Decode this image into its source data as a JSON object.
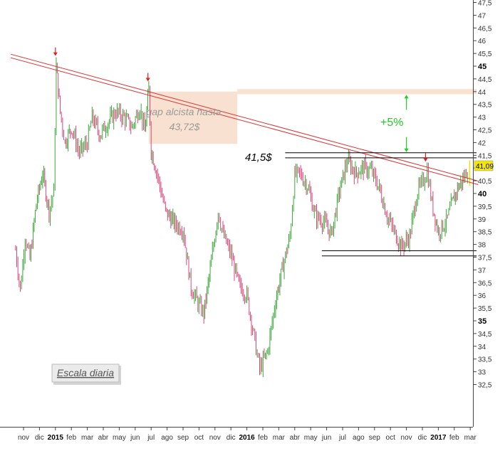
{
  "chart_data": {
    "type": "ohlc",
    "colors": {
      "up": "#3aa83a",
      "down": "#d9467a",
      "trendline": "#e03030",
      "support": "#000000",
      "gap_zone": "#f7dcc8",
      "arrow": "#e02020",
      "percent": "#22cc22",
      "last_price": "#f0e000"
    },
    "x_ticks": [
      {
        "label": "nov",
        "t": 0
      },
      {
        "label": "dic",
        "t": 1
      },
      {
        "label": "2015",
        "t": 2,
        "bold": true
      },
      {
        "label": "feb",
        "t": 3
      },
      {
        "label": "mar",
        "t": 4
      },
      {
        "label": "abr",
        "t": 5
      },
      {
        "label": "may",
        "t": 6
      },
      {
        "label": "jun",
        "t": 7
      },
      {
        "label": "jul",
        "t": 8
      },
      {
        "label": "ago",
        "t": 9
      },
      {
        "label": "sep",
        "t": 10
      },
      {
        "label": "oct",
        "t": 11
      },
      {
        "label": "nov",
        "t": 12
      },
      {
        "label": "dic",
        "t": 13
      },
      {
        "label": "2016",
        "t": 14,
        "bold": true
      },
      {
        "label": "feb",
        "t": 15
      },
      {
        "label": "mar",
        "t": 16
      },
      {
        "label": "abr",
        "t": 17
      },
      {
        "label": "may",
        "t": 18
      },
      {
        "label": "jun",
        "t": 19
      },
      {
        "label": "jul",
        "t": 20
      },
      {
        "label": "ago",
        "t": 21
      },
      {
        "label": "sep",
        "t": 22
      },
      {
        "label": "oct",
        "t": 23
      },
      {
        "label": "nov",
        "t": 24
      },
      {
        "label": "dic",
        "t": 25
      },
      {
        "label": "2017",
        "t": 26,
        "bold": true
      },
      {
        "label": "feb",
        "t": 27
      },
      {
        "label": "mar",
        "t": 28
      }
    ],
    "y_ticks": [
      {
        "label": "47,5",
        "v": 47.5
      },
      {
        "label": "47",
        "v": 47
      },
      {
        "label": "46,5",
        "v": 46.5
      },
      {
        "label": "46",
        "v": 46
      },
      {
        "label": "45,5",
        "v": 45.5
      },
      {
        "label": "45",
        "v": 45,
        "bold": true
      },
      {
        "label": "44,5",
        "v": 44.5
      },
      {
        "label": "44",
        "v": 44
      },
      {
        "label": "43,5",
        "v": 43.5
      },
      {
        "label": "43",
        "v": 43
      },
      {
        "label": "42,5",
        "v": 42.5
      },
      {
        "label": "42",
        "v": 42
      },
      {
        "label": "41,5",
        "v": 41.5
      },
      {
        "label": "41",
        "v": 41
      },
      {
        "label": "40,5",
        "v": 40.5
      },
      {
        "label": "40",
        "v": 40,
        "bold": true
      },
      {
        "label": "39,5",
        "v": 39.5
      },
      {
        "label": "39",
        "v": 39
      },
      {
        "label": "38,5",
        "v": 38.5
      },
      {
        "label": "38",
        "v": 38
      },
      {
        "label": "37,5",
        "v": 37.5
      },
      {
        "label": "37",
        "v": 37
      },
      {
        "label": "36,5",
        "v": 36.5
      },
      {
        "label": "36",
        "v": 36
      },
      {
        "label": "35,5",
        "v": 35.5
      },
      {
        "label": "35",
        "v": 35,
        "bold": true
      },
      {
        "label": "34,5",
        "v": 34.5
      },
      {
        "label": "34",
        "v": 34
      },
      {
        "label": "33,5",
        "v": 33.5
      },
      {
        "label": "33",
        "v": 33
      },
      {
        "label": "32,5",
        "v": 32.5
      }
    ],
    "price_path": [
      [
        -0.5,
        37.8
      ],
      [
        -0.2,
        36.2
      ],
      [
        0.1,
        38.3
      ],
      [
        0.4,
        37.4
      ],
      [
        0.8,
        39.6
      ],
      [
        1.2,
        40.8
      ],
      [
        1.6,
        39.3
      ],
      [
        1.9,
        40.1
      ],
      [
        2.05,
        45.0
      ],
      [
        2.3,
        43.2
      ],
      [
        2.6,
        42.0
      ],
      [
        3.0,
        42.6
      ],
      [
        3.5,
        41.6
      ],
      [
        4.0,
        42.0
      ],
      [
        4.3,
        43.0
      ],
      [
        4.8,
        42.3
      ],
      [
        5.3,
        42.8
      ],
      [
        5.8,
        43.2
      ],
      [
        6.3,
        43.0
      ],
      [
        6.8,
        42.6
      ],
      [
        7.3,
        43.4
      ],
      [
        7.6,
        42.4
      ],
      [
        7.85,
        44.1
      ],
      [
        8.0,
        41.7
      ],
      [
        8.4,
        40.7
      ],
      [
        8.9,
        39.3
      ],
      [
        9.5,
        38.8
      ],
      [
        10.0,
        38.6
      ],
      [
        10.5,
        36.3
      ],
      [
        11.0,
        35.6
      ],
      [
        11.3,
        35.3
      ],
      [
        11.7,
        37.0
      ],
      [
        12.2,
        39.3
      ],
      [
        12.5,
        38.4
      ],
      [
        13.0,
        37.6
      ],
      [
        13.5,
        36.4
      ],
      [
        14.0,
        36.0
      ],
      [
        14.5,
        34.2
      ],
      [
        14.8,
        33.1
      ],
      [
        15.3,
        33.8
      ],
      [
        15.8,
        35.8
      ],
      [
        16.2,
        37.0
      ],
      [
        16.7,
        38.3
      ],
      [
        17.0,
        40.7
      ],
      [
        17.3,
        40.8
      ],
      [
        17.8,
        40.3
      ],
      [
        18.3,
        39.1
      ],
      [
        18.8,
        38.9
      ],
      [
        19.3,
        38.4
      ],
      [
        19.8,
        40.1
      ],
      [
        20.3,
        41.3
      ],
      [
        20.8,
        40.8
      ],
      [
        21.3,
        41.0
      ],
      [
        21.8,
        40.9
      ],
      [
        22.3,
        40.2
      ],
      [
        22.8,
        39.1
      ],
      [
        23.3,
        38.4
      ],
      [
        23.7,
        37.9
      ],
      [
        24.2,
        38.3
      ],
      [
        24.7,
        40.1
      ],
      [
        25.0,
        40.4
      ],
      [
        25.3,
        40.9
      ],
      [
        25.6,
        39.6
      ],
      [
        26.0,
        38.5
      ],
      [
        26.5,
        38.9
      ],
      [
        26.8,
        39.5
      ],
      [
        27.2,
        40.2
      ],
      [
        27.6,
        40.6
      ],
      [
        27.9,
        41.09
      ]
    ],
    "trendline": {
      "start": [
        -0.8,
        45.4
      ],
      "end": [
        28.5,
        40.42
      ]
    },
    "support_lines": [
      {
        "t1": 16.4,
        "t2": 28.4,
        "v": 41.6
      },
      {
        "t1": 16.4,
        "t2": 28.4,
        "v": 41.4
      },
      {
        "t1": 18.7,
        "t2": 28.4,
        "v": 37.75
      },
      {
        "t1": 18.7,
        "t2": 28.4,
        "v": 37.55
      }
    ],
    "gap_zone": [
      {
        "t1": 7.85,
        "t2": 13.4,
        "v1": 44.0,
        "v2": 41.95
      },
      {
        "t1": 13.4,
        "t2": 28.4,
        "v1": 44.1,
        "v2": 43.9
      }
    ],
    "down_arrows": [
      {
        "t": 2.0,
        "v": 45.4
      },
      {
        "t": 7.8,
        "v": 44.4
      },
      {
        "t": 25.2,
        "v": 41.25
      }
    ],
    "percent_arrow": {
      "t": 24.0,
      "v1": 43.9,
      "v2": 41.6
    },
    "annotations": {
      "gap_line1": "gap alcista hasta",
      "gap_line2": "43,72$",
      "level": "41,5$",
      "percent": "+5%",
      "scale": "Escala diaria"
    },
    "last_price": "41,09",
    "last_value": 41.09,
    "ylim": [
      32.3,
      47.8
    ]
  }
}
